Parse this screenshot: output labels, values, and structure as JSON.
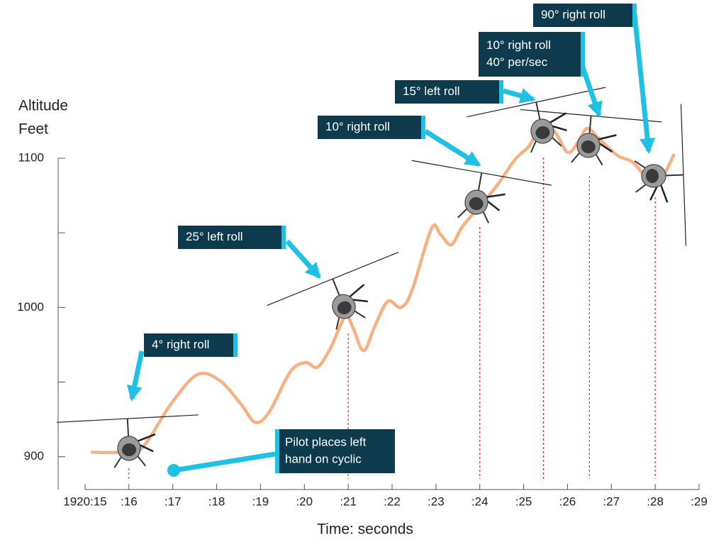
{
  "chart_data": {
    "type": "line",
    "y_label_lines": [
      "Altitude",
      "Feet"
    ],
    "x_label": "Time: seconds",
    "color": "#f5b183",
    "x": [
      15.16,
      15.81,
      16.3,
      16.95,
      17.56,
      18.07,
      18.56,
      18.88,
      19.2,
      19.68,
      20.03,
      20.3,
      20.6,
      20.93,
      21.1,
      21.35,
      21.6,
      21.9,
      22.2,
      22.45,
      22.9,
      23.1,
      23.35,
      23.6,
      24.0,
      24.4,
      24.8,
      25.12,
      25.37,
      25.7,
      26.0,
      26.25,
      26.45,
      26.72,
      27.13,
      27.5,
      27.85,
      28.1,
      28.42
    ],
    "values": [
      903,
      903,
      906,
      935,
      955,
      951,
      935,
      923,
      930,
      957,
      963,
      960,
      973,
      994,
      987,
      971,
      987,
      1004,
      1000,
      1011,
      1053,
      1049,
      1042,
      1054,
      1068,
      1082,
      1099,
      1108,
      1120,
      1118,
      1104,
      1111,
      1120,
      1113,
      1102,
      1097,
      1085,
      1084,
      1102
    ],
    "xlim": [
      15,
      29
    ],
    "xticks": [
      {
        "value": 15,
        "label": "1920:15"
      },
      {
        "value": 16,
        "label": ":16"
      },
      {
        "value": 17,
        "label": ":17"
      },
      {
        "value": 18,
        "label": ":18"
      },
      {
        "value": 19,
        "label": ":19"
      },
      {
        "value": 20,
        "label": ":20"
      },
      {
        "value": 21,
        "label": ":21"
      },
      {
        "value": 22,
        "label": ":22"
      },
      {
        "value": 23,
        "label": ":23"
      },
      {
        "value": 24,
        "label": ":24"
      },
      {
        "value": 25,
        "label": ":25"
      },
      {
        "value": 26,
        "label": ":26"
      },
      {
        "value": 27,
        "label": ":27"
      },
      {
        "value": 28,
        "label": ":28"
      },
      {
        "value": 29,
        "label": ":29"
      }
    ],
    "ylim": [
      878,
      1100
    ],
    "yticks": [
      900,
      1000,
      1100
    ],
    "yminorticks": [
      950,
      1050
    ],
    "annotations": [
      {
        "x": 16,
        "lines": [
          "4° right roll"
        ]
      },
      {
        "x": 21,
        "lines": [
          "25° left roll"
        ]
      },
      {
        "x": 24,
        "lines": [
          "10° right roll"
        ]
      },
      {
        "x": 25.45,
        "lines": [
          "15° left roll"
        ]
      },
      {
        "x": 26.5,
        "lines": [
          "10° right roll",
          "40° per/sec"
        ]
      },
      {
        "x": 28,
        "lines": [
          "90° right roll"
        ]
      },
      {
        "x": 17,
        "lines": [
          "Pilot places left",
          "hand on cyclic"
        ]
      }
    ]
  }
}
